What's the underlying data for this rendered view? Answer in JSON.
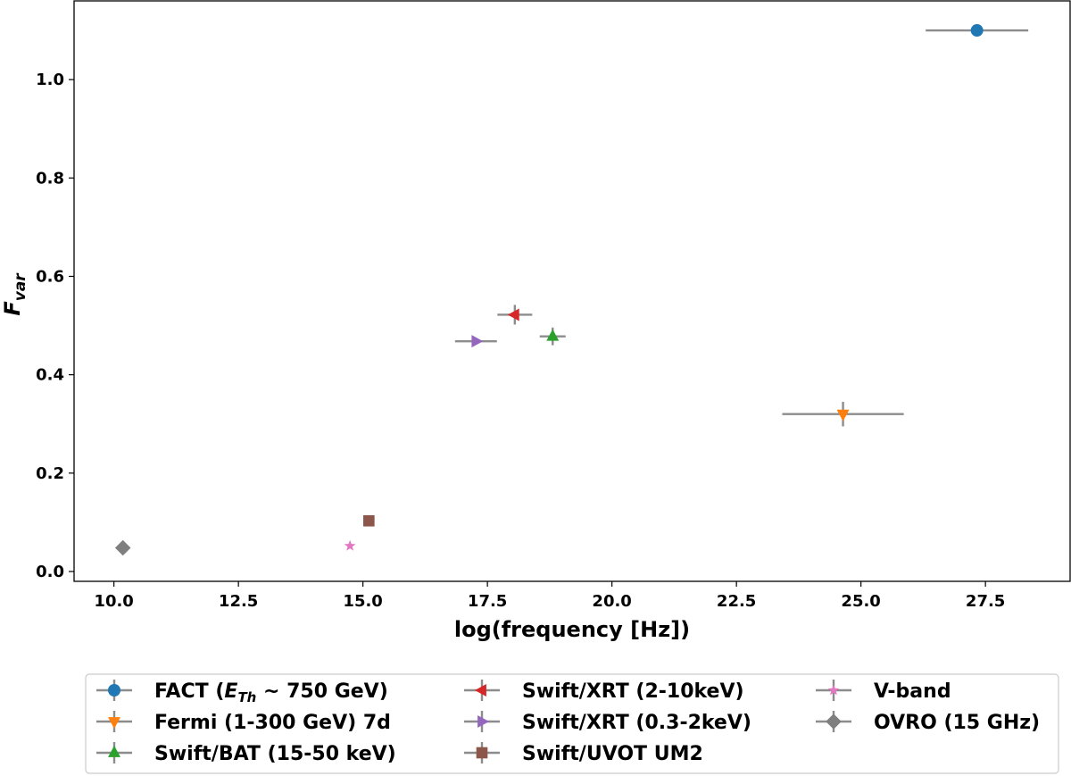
{
  "chart_data": {
    "type": "scatter",
    "xlabel": "log(frequency [Hz])",
    "ylabel_main": "F",
    "ylabel_sub": "var",
    "xlim": [
      9.2,
      29.2
    ],
    "ylim": [
      -0.02,
      1.16
    ],
    "xticks": [
      "10.0",
      "12.5",
      "15.0",
      "17.5",
      "20.0",
      "22.5",
      "25.0",
      "27.5"
    ],
    "xtick_values": [
      10.0,
      12.5,
      15.0,
      17.5,
      20.0,
      22.5,
      25.0,
      27.5
    ],
    "yticks": [
      "0.0",
      "0.2",
      "0.4",
      "0.6",
      "0.8",
      "1.0"
    ],
    "ytick_values": [
      0.0,
      0.2,
      0.4,
      0.6,
      0.8,
      1.0
    ],
    "errorbar_color": "#8c8c8c",
    "legend_position": "below plot",
    "series": [
      {
        "name": "FACT (E_Th ~ 750 GeV)",
        "label_main": "FACT (",
        "label_var": "E",
        "label_sub": "Th",
        "label_rest": " ~ 750 GeV)",
        "x": 27.33,
        "y": 1.1,
        "xerr": 1.03,
        "yerr": 0.0,
        "marker": "circle",
        "color": "#1f77b4"
      },
      {
        "name": "Fermi (1-300 GeV) 7d",
        "label": "Fermi (1-300 GeV) 7d",
        "x": 24.64,
        "y": 0.32,
        "xerr": 1.22,
        "yerr": 0.025,
        "marker": "triangle-down",
        "color": "#ff7f0e"
      },
      {
        "name": "Swift/BAT (15-50 keV)",
        "label": "Swift/BAT (15-50 keV)",
        "x": 18.81,
        "y": 0.478,
        "xerr": 0.26,
        "yerr": 0.018,
        "marker": "triangle-up",
        "color": "#2ca02c"
      },
      {
        "name": "Swift/XRT (2-10keV)",
        "label": "Swift/XRT (2-10keV)",
        "x": 18.05,
        "y": 0.522,
        "xerr": 0.35,
        "yerr": 0.02,
        "marker": "triangle-left",
        "color": "#d62728"
      },
      {
        "name": "Swift/XRT (0.3-2keV)",
        "label": "Swift/XRT (0.3-2keV)",
        "x": 17.27,
        "y": 0.468,
        "xerr": 0.42,
        "yerr": 0.006,
        "marker": "triangle-right",
        "color": "#9467bd"
      },
      {
        "name": "Swift/UVOT UM2",
        "label": "Swift/UVOT UM2",
        "x": 15.12,
        "y": 0.103,
        "xerr": 0.0,
        "yerr": 0.0,
        "marker": "square",
        "color": "#8c564b"
      },
      {
        "name": "V-band",
        "label": "V-band",
        "x": 14.74,
        "y": 0.052,
        "xerr": 0.0,
        "yerr": 0.0,
        "marker": "star",
        "color": "#e377c2"
      },
      {
        "name": "OVRO (15 GHz)",
        "label": "OVRO (15 GHz)",
        "x": 10.18,
        "y": 0.048,
        "xerr": 0.0,
        "yerr": 0.0,
        "marker": "diamond",
        "color": "#7f7f7f"
      }
    ]
  }
}
